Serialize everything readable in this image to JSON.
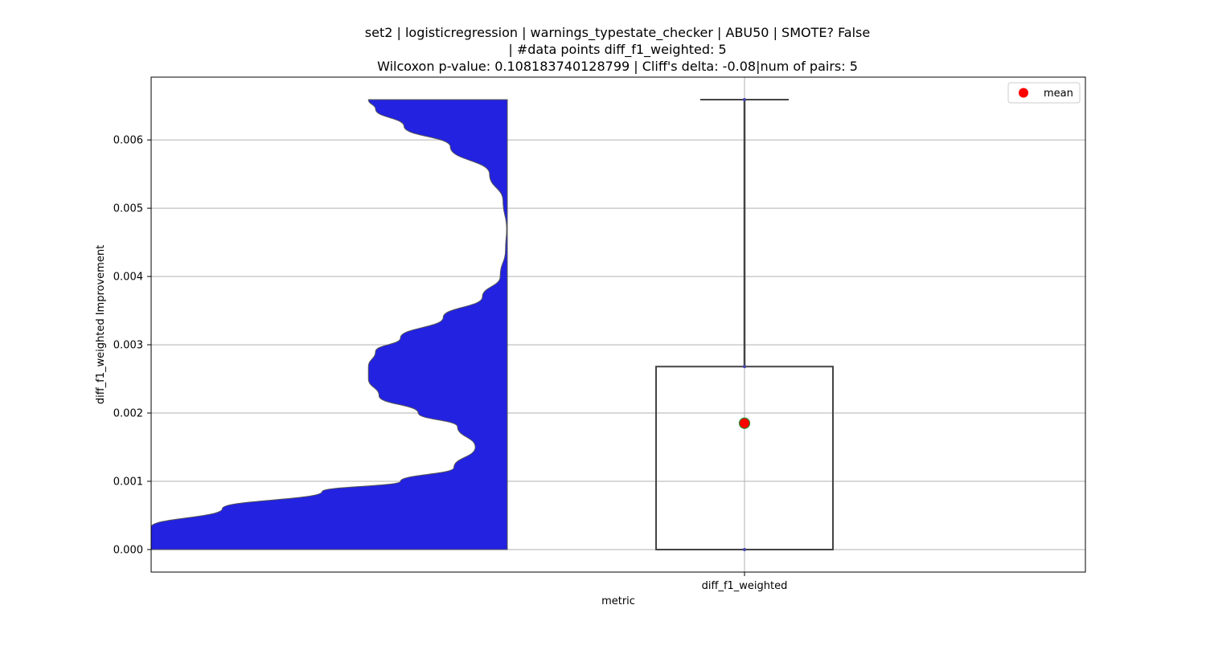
{
  "chart_data": {
    "type": "violin-box",
    "title_lines": [
      "set2 | logisticregression | warnings_typestate_checker | ABU50 | SMOTE? False",
      "| #data points diff_f1_weighted: 5",
      "Wilcoxon p-value: 0.108183740128799 | Cliff's delta: -0.08|num of pairs: 5"
    ],
    "xlabel": "metric",
    "ylabel": "diff_f1_weighted Improvement",
    "categories": [
      "diff_f1_weighted"
    ],
    "ylim": [
      -0.00033,
      0.00692
    ],
    "yticks": [
      0.0,
      0.001,
      0.002,
      0.003,
      0.004,
      0.005,
      0.006
    ],
    "ytick_labels": [
      "0.000",
      "0.001",
      "0.002",
      "0.003",
      "0.004",
      "0.005",
      "0.006"
    ],
    "grid": true,
    "legend": {
      "position": "top-right",
      "entries": [
        {
          "label": "mean",
          "color": "#ff0000"
        }
      ]
    },
    "violin": {
      "color": "#2222e0",
      "edge_color": "#555555",
      "side": "left",
      "density_profile": [
        {
          "y": 0.0,
          "w": 1.0
        },
        {
          "y": 0.00033,
          "w": 1.0
        },
        {
          "y": 0.0006,
          "w": 0.8
        },
        {
          "y": 0.00085,
          "w": 0.52
        },
        {
          "y": 0.001,
          "w": 0.3
        },
        {
          "y": 0.0012,
          "w": 0.15
        },
        {
          "y": 0.0015,
          "w": 0.09
        },
        {
          "y": 0.0018,
          "w": 0.14
        },
        {
          "y": 0.002,
          "w": 0.25
        },
        {
          "y": 0.00225,
          "w": 0.36
        },
        {
          "y": 0.0025,
          "w": 0.39
        },
        {
          "y": 0.00268,
          "w": 0.39
        },
        {
          "y": 0.0029,
          "w": 0.37
        },
        {
          "y": 0.0031,
          "w": 0.3
        },
        {
          "y": 0.0034,
          "w": 0.18
        },
        {
          "y": 0.0037,
          "w": 0.07
        },
        {
          "y": 0.004,
          "w": 0.02
        },
        {
          "y": 0.0044,
          "w": 0.005
        },
        {
          "y": 0.0047,
          "w": 0.002
        },
        {
          "y": 0.0051,
          "w": 0.012
        },
        {
          "y": 0.0055,
          "w": 0.05
        },
        {
          "y": 0.0059,
          "w": 0.16
        },
        {
          "y": 0.0062,
          "w": 0.29
        },
        {
          "y": 0.00645,
          "w": 0.37
        },
        {
          "y": 0.00659,
          "w": 0.39
        }
      ]
    },
    "box": {
      "category": "diff_f1_weighted",
      "min": 0.0,
      "q1": 0.0,
      "median": 0.0,
      "q3": 0.00268,
      "max": 0.00659,
      "mean": 0.00185,
      "box_edge_color": "#444444",
      "mean_color": "#ff0000",
      "mean_edge_color": "#2e8b2e"
    }
  }
}
